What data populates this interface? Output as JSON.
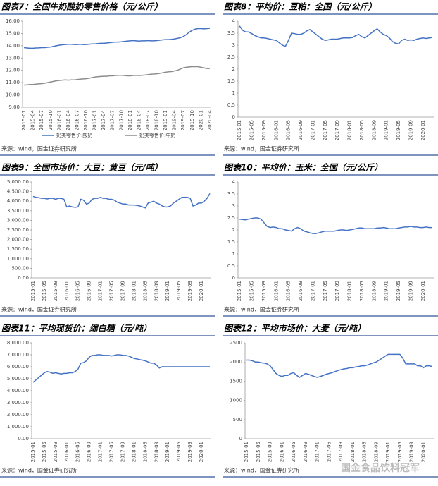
{
  "chart_data": [
    {
      "type": "line",
      "title": "图表7：全国牛奶酸奶零售价格（元/公斤）",
      "source": "来源：wind，国金证券研究所",
      "categories": [
        "2015-01",
        null,
        null,
        "2015-04",
        null,
        null,
        "2015-07",
        null,
        null,
        "2015-10",
        null,
        null,
        "2016-01",
        null,
        null,
        "2016-04",
        null,
        null,
        "2016-07",
        null,
        null,
        "2016-10",
        null,
        null,
        "2017-01",
        null,
        null,
        "2017-04",
        null,
        null,
        "2017-07",
        null,
        null,
        "2017-10",
        null,
        null,
        "2018-01",
        null,
        null,
        "2018-04",
        null,
        null,
        "2018-07",
        null,
        null,
        "2018-10",
        null,
        null,
        "2019-01",
        null,
        null,
        "2019-04",
        null,
        null,
        "2019-07",
        null,
        null,
        "2019-10",
        null,
        null,
        "2020-01",
        null,
        null,
        "2020-04"
      ],
      "series": [
        {
          "name": "奶类零售价:酸奶",
          "color": "#4472c4",
          "values": [
            13.85,
            13.82,
            13.8,
            13.8,
            13.82,
            13.83,
            13.85,
            13.85,
            13.88,
            13.9,
            13.95,
            14.0,
            14.05,
            14.08,
            14.1,
            14.12,
            14.12,
            14.1,
            14.1,
            14.12,
            14.1,
            14.1,
            14.12,
            14.15,
            14.15,
            14.18,
            14.2,
            14.2,
            14.22,
            14.25,
            14.28,
            14.3,
            14.3,
            14.32,
            14.35,
            14.38,
            14.4,
            14.42,
            14.4,
            14.38,
            14.4,
            14.4,
            14.42,
            14.4,
            14.4,
            14.42,
            14.45,
            14.48,
            14.5,
            14.5,
            14.52,
            14.55,
            14.6,
            14.65,
            14.75,
            14.9,
            15.1,
            15.25,
            15.35,
            15.4,
            15.4,
            15.38,
            15.4,
            15.42
          ]
        },
        {
          "name": "奶类零售价:牛奶",
          "color": "#8c8c8c",
          "values": [
            10.8,
            10.82,
            10.85,
            10.85,
            10.88,
            10.9,
            10.92,
            10.95,
            11.0,
            11.05,
            11.1,
            11.15,
            11.18,
            11.2,
            11.22,
            11.2,
            11.22,
            11.22,
            11.25,
            11.28,
            11.3,
            11.32,
            11.35,
            11.4,
            11.45,
            11.48,
            11.5,
            11.52,
            11.52,
            11.55,
            11.55,
            11.58,
            11.6,
            11.6,
            11.58,
            11.55,
            11.55,
            11.58,
            11.6,
            11.58,
            11.6,
            11.62,
            11.65,
            11.68,
            11.7,
            11.72,
            11.75,
            11.8,
            11.85,
            11.88,
            11.9,
            11.95,
            12.0,
            12.1,
            12.2,
            12.25,
            12.28,
            12.3,
            12.3,
            12.3,
            12.25,
            12.2,
            12.15,
            12.15
          ]
        }
      ],
      "ylim": [
        9,
        16
      ],
      "yticks": [
        {
          "value": 9,
          "label": "9.00"
        },
        {
          "value": 10,
          "label": "10.00"
        },
        {
          "value": 11,
          "label": "11.00"
        },
        {
          "value": 12,
          "label": "12.00"
        },
        {
          "value": 13,
          "label": "13.00"
        },
        {
          "value": 14,
          "label": "14.00"
        },
        {
          "value": 15,
          "label": "15.00"
        },
        {
          "value": 16,
          "label": "16.00"
        }
      ],
      "grid": false
    },
    {
      "type": "line",
      "title": "图表8：平均价：豆粕：全国（元/公斤）",
      "source": "来源：wind，国金证券研究所",
      "categories": [
        "2015-01",
        null,
        null,
        null,
        "2015-05",
        null,
        null,
        null,
        "2015-09",
        null,
        null,
        null,
        "2016-01",
        null,
        null,
        null,
        "2016-05",
        null,
        null,
        null,
        "2016-09",
        null,
        null,
        null,
        "2017-01",
        null,
        null,
        null,
        "2017-05",
        null,
        null,
        null,
        "2017-09",
        null,
        null,
        null,
        "2018-01",
        null,
        null,
        null,
        "2018-05",
        null,
        null,
        null,
        "2018-09",
        null,
        null,
        null,
        "2019-01",
        null,
        null,
        null,
        "2019-05",
        null,
        null,
        null,
        "2019-09",
        null,
        null,
        null,
        "2020-01",
        null,
        null,
        null
      ],
      "color": "#4472c4",
      "values": [
        3.8,
        3.62,
        3.55,
        3.55,
        3.48,
        3.4,
        3.35,
        3.3,
        3.3,
        3.28,
        3.25,
        3.22,
        3.2,
        3.1,
        3.0,
        2.95,
        3.2,
        3.5,
        3.48,
        3.45,
        3.45,
        3.5,
        3.6,
        3.65,
        3.55,
        3.45,
        3.35,
        3.25,
        3.2,
        3.22,
        3.25,
        3.25,
        3.25,
        3.28,
        3.3,
        3.3,
        3.3,
        3.32,
        3.4,
        3.45,
        3.35,
        3.3,
        3.4,
        3.5,
        3.6,
        3.68,
        3.55,
        3.45,
        3.4,
        3.3,
        3.15,
        3.08,
        3.05,
        3.2,
        3.25,
        3.2,
        3.22,
        3.2,
        3.25,
        3.28,
        3.3,
        3.28,
        3.3,
        3.32
      ],
      "ylim": [
        0,
        4
      ],
      "yticks": [
        0,
        0.5,
        1,
        1.5,
        2,
        2.5,
        3,
        3.5,
        4
      ],
      "grid": false
    },
    {
      "type": "line",
      "title": "图表9：全国市场价：大豆：黄豆（元/吨）",
      "source": "来源：wind，国金证券研究所",
      "categories": [
        "2015-01",
        null,
        null,
        null,
        "2015-05",
        null,
        null,
        null,
        "2015-09",
        null,
        null,
        null,
        "2016-01",
        null,
        null,
        null,
        "2016-05",
        null,
        null,
        null,
        "2016-09",
        null,
        null,
        null,
        "2017-01",
        null,
        null,
        null,
        "2017-05",
        null,
        null,
        null,
        "2017-09",
        null,
        null,
        null,
        "2018-01",
        null,
        null,
        null,
        "2018-05",
        null,
        null,
        null,
        "2018-09",
        null,
        null,
        null,
        "2019-01",
        null,
        null,
        null,
        "2019-05",
        null,
        null,
        null,
        "2019-09",
        null,
        null,
        null,
        "2020-01",
        null,
        null,
        null
      ],
      "color": "#4472c4",
      "values": [
        4250,
        4200,
        4180,
        4150,
        4150,
        4120,
        4150,
        4150,
        4100,
        4150,
        4150,
        4100,
        3700,
        3750,
        3700,
        3680,
        3700,
        4100,
        4050,
        3850,
        3900,
        4100,
        4150,
        4150,
        4200,
        4150,
        4150,
        4100,
        4100,
        4050,
        3950,
        3900,
        3850,
        3850,
        3800,
        3800,
        3800,
        3780,
        3750,
        3700,
        3650,
        3900,
        3950,
        4000,
        3900,
        3850,
        3750,
        3700,
        3700,
        3750,
        3900,
        4000,
        4100,
        4200,
        4200,
        4200,
        4150,
        3750,
        3800,
        3900,
        3900,
        4000,
        4150,
        4400
      ],
      "ylim": [
        0,
        5000
      ],
      "yticks": [
        {
          "value": 0,
          "label": "0.00"
        },
        {
          "value": 500,
          "label": "500.00"
        },
        {
          "value": 1000,
          "label": "1,000.00"
        },
        {
          "value": 1500,
          "label": "1,500.00"
        },
        {
          "value": 2000,
          "label": "2,000.00"
        },
        {
          "value": 2500,
          "label": "2,500.00"
        },
        {
          "value": 3000,
          "label": "3,000.00"
        },
        {
          "value": 3500,
          "label": "3,500.00"
        },
        {
          "value": 4000,
          "label": "4,000.00"
        },
        {
          "value": 4500,
          "label": "4,500.00"
        },
        {
          "value": 5000,
          "label": "5,000.00"
        }
      ],
      "grid": false
    },
    {
      "type": "line",
      "title": "图表10：平均价：玉米：全国（元/公斤）",
      "source": "来源：wind，国金证券研究所",
      "categories": [
        "2015-01",
        null,
        null,
        null,
        "2015-05",
        null,
        null,
        null,
        "2015-09",
        null,
        null,
        null,
        "2016-01",
        null,
        null,
        null,
        "2016-05",
        null,
        null,
        null,
        "2016-09",
        null,
        null,
        null,
        "2017-01",
        null,
        null,
        null,
        "2017-05",
        null,
        null,
        null,
        "2017-09",
        null,
        null,
        null,
        "2018-01",
        null,
        null,
        null,
        "2018-05",
        null,
        null,
        null,
        "2018-09",
        null,
        null,
        null,
        "2019-01",
        null,
        null,
        null,
        "2019-05",
        null,
        null,
        null,
        "2019-09",
        null,
        null,
        null,
        "2020-01",
        null,
        null,
        null
      ],
      "color": "#4472c4",
      "values": [
        2.45,
        2.43,
        2.42,
        2.45,
        2.48,
        2.5,
        2.5,
        2.45,
        2.3,
        2.15,
        2.1,
        2.12,
        2.1,
        2.05,
        2.05,
        2.0,
        1.98,
        1.95,
        2.05,
        2.1,
        2.05,
        1.95,
        1.92,
        1.88,
        1.85,
        1.85,
        1.88,
        1.92,
        1.95,
        1.95,
        1.95,
        1.95,
        1.98,
        2.0,
        2.0,
        1.98,
        2.0,
        2.02,
        2.05,
        2.08,
        2.08,
        2.05,
        2.05,
        2.05,
        2.05,
        2.08,
        2.08,
        2.1,
        2.08,
        2.05,
        2.05,
        2.05,
        2.08,
        2.1,
        2.12,
        2.12,
        2.15,
        2.12,
        2.12,
        2.1,
        2.1,
        2.12,
        2.1,
        2.1
      ],
      "ylim": [
        0,
        4
      ],
      "yticks": [
        0,
        0.5,
        1,
        1.5,
        2,
        2.5,
        3,
        3.5,
        4
      ],
      "grid": false
    },
    {
      "type": "line",
      "title": "图表11：平均现货价：绵白糖（元/吨）",
      "source": "来源：wind，国金证券研究所",
      "categories": [
        "2015-01",
        null,
        null,
        null,
        "2015-05",
        null,
        null,
        null,
        "2015-09",
        null,
        null,
        null,
        "2016-01",
        null,
        null,
        null,
        "2016-05",
        null,
        null,
        null,
        "2016-09",
        null,
        null,
        null,
        "2017-01",
        null,
        null,
        null,
        "2017-05",
        null,
        null,
        null,
        "2017-09",
        null,
        null,
        null,
        "2018-01",
        null,
        null,
        null,
        "2018-05",
        null,
        null,
        null,
        "2018-09",
        null,
        null,
        null,
        "2019-01",
        null,
        null,
        null,
        "2019-05",
        null,
        null,
        null,
        "2019-09",
        null,
        null,
        null,
        "2020-01",
        null,
        null,
        null
      ],
      "color": "#4472c4",
      "values": [
        4700,
        4900,
        5100,
        5300,
        5500,
        5600,
        5550,
        5450,
        5500,
        5450,
        5400,
        5450,
        5450,
        5500,
        5500,
        5600,
        5800,
        6300,
        6350,
        6500,
        6800,
        6950,
        6950,
        7000,
        7000,
        6950,
        6950,
        6950,
        6900,
        6950,
        7000,
        7000,
        6950,
        6950,
        6900,
        6800,
        6700,
        6650,
        6600,
        6550,
        6500,
        6400,
        6300,
        6300,
        6150,
        5900,
        6000,
        6000,
        6000,
        6000,
        6000,
        6000,
        6000,
        6000,
        6000,
        6000,
        6000,
        6000,
        6000,
        6000,
        6000,
        6000,
        6000,
        6000
      ],
      "ylim": [
        0,
        8000
      ],
      "yticks": [
        {
          "value": 0,
          "label": "0.00"
        },
        {
          "value": 1000,
          "label": "1,000.00"
        },
        {
          "value": 2000,
          "label": "2,000.00"
        },
        {
          "value": 3000,
          "label": "3,000.00"
        },
        {
          "value": 4000,
          "label": "4,000.00"
        },
        {
          "value": 5000,
          "label": "5,000.00"
        },
        {
          "value": 6000,
          "label": "6,000.00"
        },
        {
          "value": 7000,
          "label": "7,000.00"
        },
        {
          "value": 8000,
          "label": "8,000.00"
        }
      ],
      "grid": false
    },
    {
      "type": "line",
      "title": "图表12：平均市场价：大麦（元/吨）",
      "source": "来源：wind，国金证券研究所",
      "categories": [
        "2015-01",
        null,
        null,
        null,
        "2015-05",
        null,
        null,
        null,
        "2015-09",
        null,
        null,
        null,
        "2016-01",
        null,
        null,
        null,
        "2016-05",
        null,
        null,
        null,
        "2016-09",
        null,
        null,
        null,
        "2017-01",
        null,
        null,
        null,
        "2017-05",
        null,
        null,
        null,
        "2017-09",
        null,
        null,
        null,
        "2018-01",
        null,
        null,
        null,
        "2018-05",
        null,
        null,
        null,
        "2018-09",
        null,
        null,
        null,
        "2019-01",
        null,
        null,
        null,
        "2019-05",
        null,
        null,
        null,
        "2019-09",
        null,
        null,
        null,
        "2020-01",
        null,
        null,
        null
      ],
      "color": "#4472c4",
      "values": [
        2050,
        2050,
        2030,
        2000,
        2000,
        1980,
        1970,
        1950,
        1900,
        1800,
        1700,
        1650,
        1620,
        1650,
        1650,
        1700,
        1720,
        1650,
        1600,
        1650,
        1700,
        1680,
        1650,
        1620,
        1600,
        1620,
        1650,
        1680,
        1700,
        1720,
        1750,
        1780,
        1800,
        1820,
        1830,
        1850,
        1850,
        1870,
        1880,
        1900,
        1900,
        1920,
        1950,
        1980,
        2000,
        2050,
        2100,
        2150,
        2200,
        2200,
        2200,
        2200,
        2200,
        2100,
        1950,
        1950,
        1950,
        1950,
        1900,
        1900,
        1850,
        1900,
        1900,
        1880
      ],
      "ylim": [
        0,
        2500
      ],
      "yticks": [
        0,
        500,
        1000,
        1500,
        2000,
        2500
      ],
      "grid": false
    }
  ],
  "watermark": "国金食品饮料冠军"
}
